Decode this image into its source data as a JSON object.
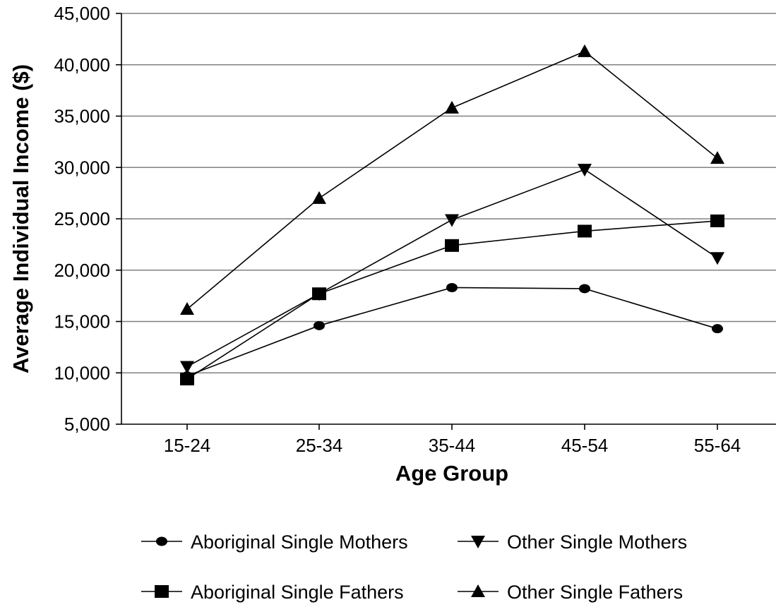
{
  "chart_data": {
    "type": "line",
    "title": "",
    "xlabel": "Age Group",
    "ylabel": "Average Individual Income ($)",
    "categories": [
      "15-24",
      "25-34",
      "35-44",
      "45-54",
      "55-64"
    ],
    "ylim": [
      5000,
      45000
    ],
    "yticks": [
      5000,
      10000,
      15000,
      20000,
      25000,
      30000,
      35000,
      40000,
      45000
    ],
    "ytick_labels": [
      "5,000",
      "10,000",
      "15,000",
      "20,000",
      "25,000",
      "30,000",
      "35,000",
      "40,000",
      "45,000"
    ],
    "grid": "horizontal",
    "legend_position": "bottom",
    "series": [
      {
        "name": "Aboriginal Single Mothers",
        "marker": "circle",
        "values": [
          9700,
          14600,
          18300,
          18200,
          14300
        ]
      },
      {
        "name": "Other Single Mothers",
        "marker": "triangle-down",
        "values": [
          10600,
          17700,
          24900,
          29800,
          21200
        ]
      },
      {
        "name": "Aboriginal Single Fathers",
        "marker": "square",
        "values": [
          9400,
          17700,
          22400,
          23800,
          24800
        ]
      },
      {
        "name": "Other Single Fathers",
        "marker": "triangle-up",
        "values": [
          16200,
          27000,
          35800,
          41300,
          30900
        ]
      }
    ],
    "colors": {
      "line": "#000000",
      "marker": "#000000",
      "grid": "#808080"
    }
  }
}
